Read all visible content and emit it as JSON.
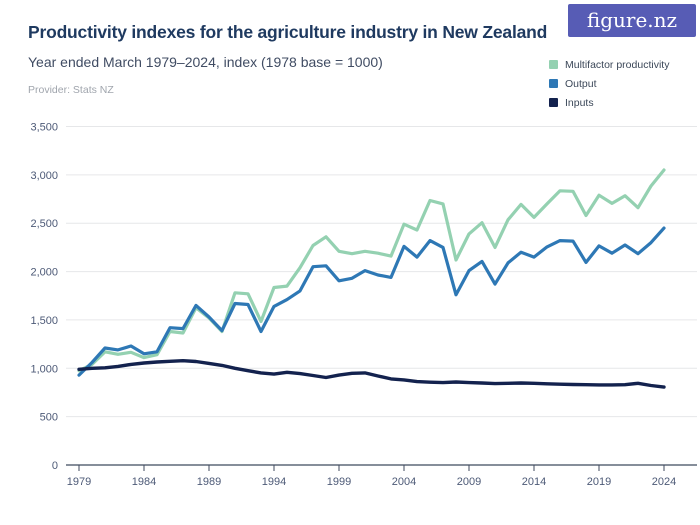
{
  "header": {
    "title": "Productivity indexes for the agriculture industry in New Zealand",
    "subtitle": "Year ended March 1979–2024, index (1978 base = 1000)",
    "provider": "Provider: Stats NZ",
    "logo_text": "figure.nz"
  },
  "legend": {
    "items": [
      {
        "label": "Multifactor productivity",
        "color": "#94d1b1"
      },
      {
        "label": "Output",
        "color": "#2e78b5"
      },
      {
        "label": "Inputs",
        "color": "#13224e"
      }
    ]
  },
  "colors": {
    "title": "#1f3a60",
    "subtitle": "#404c63",
    "provider": "#a0a5ad",
    "logo_bg": "#575cb5",
    "grid": "#e6e7e9",
    "axis": "#3f4a5e",
    "tick_labels": "#4d5a77"
  },
  "chart_data": {
    "type": "line",
    "title": "Productivity indexes for the agriculture industry in New Zealand",
    "subtitle": "Year ended March 1979–2024, index (1978 base = 1000)",
    "xlabel": "",
    "ylabel": "",
    "ylim": [
      0,
      3500
    ],
    "yticks": [
      0,
      500,
      1000,
      1500,
      2000,
      2500,
      3000,
      3500
    ],
    "ytick_labels": [
      "0",
      "500",
      "1,000",
      "1,500",
      "2,000",
      "2,500",
      "3,000",
      "3,500"
    ],
    "xticks": [
      1979,
      1984,
      1989,
      1994,
      1999,
      2004,
      2009,
      2014,
      2019,
      2024
    ],
    "grid": "horizontal",
    "legend_position": "top-right",
    "x": [
      1979,
      1980,
      1981,
      1982,
      1983,
      1984,
      1985,
      1986,
      1987,
      1988,
      1989,
      1990,
      1991,
      1992,
      1993,
      1994,
      1995,
      1996,
      1997,
      1998,
      1999,
      2000,
      2001,
      2002,
      2003,
      2004,
      2005,
      2006,
      2007,
      2008,
      2009,
      2010,
      2011,
      2012,
      2013,
      2014,
      2015,
      2016,
      2017,
      2018,
      2019,
      2020,
      2021,
      2022,
      2023,
      2024
    ],
    "series": [
      {
        "name": "Multifactor productivity",
        "color": "#94d1b1",
        "width": 3.2,
        "values": [
          975,
          1040,
          1170,
          1145,
          1165,
          1110,
          1140,
          1380,
          1365,
          1625,
          1520,
          1380,
          1780,
          1770,
          1485,
          1835,
          1850,
          2040,
          2270,
          2360,
          2210,
          2185,
          2210,
          2190,
          2160,
          2490,
          2430,
          2735,
          2700,
          2120,
          2390,
          2505,
          2250,
          2535,
          2695,
          2560,
          2700,
          2835,
          2830,
          2580,
          2790,
          2705,
          2785,
          2660,
          2885,
          3050
        ]
      },
      {
        "name": "Output",
        "color": "#2e78b5",
        "width": 3.2,
        "values": [
          930,
          1060,
          1210,
          1190,
          1230,
          1150,
          1170,
          1420,
          1410,
          1650,
          1530,
          1390,
          1670,
          1660,
          1380,
          1640,
          1710,
          1800,
          2050,
          2060,
          1905,
          1930,
          2010,
          1965,
          1940,
          2260,
          2150,
          2320,
          2250,
          1760,
          2010,
          2105,
          1870,
          2090,
          2200,
          2150,
          2255,
          2320,
          2315,
          2095,
          2265,
          2190,
          2275,
          2185,
          2300,
          2450
        ]
      },
      {
        "name": "Inputs",
        "color": "#13224e",
        "width": 3.4,
        "values": [
          990,
          1000,
          1005,
          1020,
          1040,
          1055,
          1065,
          1072,
          1078,
          1070,
          1050,
          1030,
          1000,
          975,
          952,
          940,
          958,
          945,
          925,
          905,
          930,
          948,
          952,
          920,
          890,
          880,
          862,
          856,
          852,
          858,
          852,
          848,
          842,
          845,
          848,
          845,
          840,
          835,
          832,
          830,
          828,
          828,
          830,
          845,
          822,
          805
        ]
      }
    ]
  }
}
